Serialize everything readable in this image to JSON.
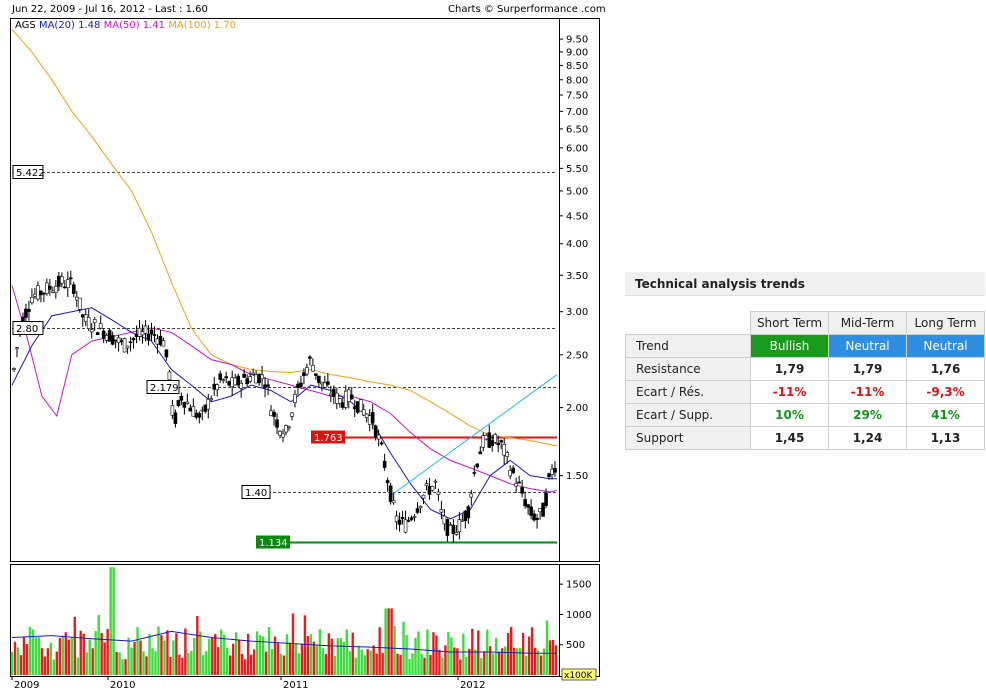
{
  "header": {
    "range_label": "Jun 22, 2009 - Jul 16, 2012 - Last : 1.60",
    "credit": "Charts © Surperformance .com"
  },
  "legend": {
    "ticker": "AGS",
    "ma20": "MA(20) 1.48",
    "ma50": "MA(50) 1.41",
    "ma100": "MA(100) 1.70"
  },
  "colors": {
    "ma20": "#1a1ab4",
    "ma50": "#c814c8",
    "ma100": "#f0a014",
    "trend": "#20b8e8",
    "resistance": "#e01010",
    "support": "#0a8a0a",
    "vol_up": "#3cdc3c",
    "vol_down": "#e81c1c",
    "bullish": "#1a9a1a",
    "neutral": "#2e8fe0"
  },
  "chart_data": {
    "type": "candlestick",
    "y_scale": "log",
    "y_ticks": [
      "9.50",
      "9.00",
      "8.50",
      "8.00",
      "7.50",
      "7.00",
      "6.50",
      "6.00",
      "5.50",
      "5.00",
      "4.50",
      "4.00",
      "3.50",
      "3.00",
      "2.50",
      "2.00",
      "1.50"
    ],
    "x_ticks": [
      "2009",
      "2010",
      "2011",
      "2012"
    ],
    "levels": [
      {
        "label": "5.422",
        "value": 5.422,
        "style": "dashed"
      },
      {
        "label": "2.80",
        "value": 2.8,
        "style": "dashed"
      },
      {
        "label": "2.179",
        "value": 2.179,
        "style": "dashed"
      },
      {
        "label": "1.40",
        "value": 1.4,
        "style": "dashed"
      },
      {
        "label": "1.763",
        "value": 1.763,
        "style": "resistance"
      },
      {
        "label": "1.134",
        "value": 1.134,
        "style": "support"
      }
    ],
    "price_path": [
      [
        0,
        2.2
      ],
      [
        8,
        2.8
      ],
      [
        20,
        3.2
      ],
      [
        35,
        3.3
      ],
      [
        50,
        3.4
      ],
      [
        62,
        3.35
      ],
      [
        72,
        2.9
      ],
      [
        88,
        2.8
      ],
      [
        100,
        2.7
      ],
      [
        112,
        2.6
      ],
      [
        125,
        2.7
      ],
      [
        140,
        2.75
      ],
      [
        152,
        2.65
      ],
      [
        158,
        2.3
      ],
      [
        162,
        1.85
      ],
      [
        170,
        2.1
      ],
      [
        180,
        2.0
      ],
      [
        190,
        1.9
      ],
      [
        200,
        2.1
      ],
      [
        210,
        2.25
      ],
      [
        222,
        2.2
      ],
      [
        232,
        2.25
      ],
      [
        245,
        2.3
      ],
      [
        255,
        2.25
      ],
      [
        260,
        2.0
      ],
      [
        268,
        1.85
      ],
      [
        275,
        1.8
      ],
      [
        285,
        2.1
      ],
      [
        295,
        2.35
      ],
      [
        300,
        2.45
      ],
      [
        308,
        2.25
      ],
      [
        318,
        2.15
      ],
      [
        330,
        2.05
      ],
      [
        340,
        2.1
      ],
      [
        350,
        2.0
      ],
      [
        362,
        1.9
      ],
      [
        370,
        1.7
      ],
      [
        378,
        1.45
      ],
      [
        385,
        1.25
      ],
      [
        395,
        1.22
      ],
      [
        405,
        1.3
      ],
      [
        415,
        1.4
      ],
      [
        425,
        1.45
      ],
      [
        432,
        1.25
      ],
      [
        440,
        1.18
      ],
      [
        450,
        1.22
      ],
      [
        458,
        1.3
      ],
      [
        465,
        1.55
      ],
      [
        472,
        1.72
      ],
      [
        482,
        1.75
      ],
      [
        492,
        1.7
      ],
      [
        500,
        1.55
      ],
      [
        510,
        1.42
      ],
      [
        520,
        1.28
      ],
      [
        528,
        1.25
      ],
      [
        534,
        1.3
      ],
      [
        540,
        1.5
      ],
      [
        547,
        1.6
      ]
    ],
    "ma20_path": [
      [
        0,
        2.2
      ],
      [
        20,
        2.6
      ],
      [
        40,
        2.95
      ],
      [
        60,
        3.0
      ],
      [
        80,
        3.05
      ],
      [
        100,
        2.9
      ],
      [
        120,
        2.75
      ],
      [
        140,
        2.65
      ],
      [
        160,
        2.35
      ],
      [
        180,
        2.2
      ],
      [
        200,
        2.05
      ],
      [
        220,
        2.1
      ],
      [
        240,
        2.2
      ],
      [
        260,
        2.15
      ],
      [
        280,
        2.05
      ],
      [
        300,
        2.2
      ],
      [
        320,
        2.15
      ],
      [
        340,
        2.05
      ],
      [
        360,
        1.9
      ],
      [
        380,
        1.65
      ],
      [
        400,
        1.45
      ],
      [
        420,
        1.3
      ],
      [
        440,
        1.25
      ],
      [
        460,
        1.3
      ],
      [
        480,
        1.5
      ],
      [
        500,
        1.6
      ],
      [
        520,
        1.5
      ],
      [
        540,
        1.48
      ],
      [
        547,
        1.48
      ]
    ],
    "ma50_path": [
      [
        0,
        3.35
      ],
      [
        15,
        2.7
      ],
      [
        30,
        2.1
      ],
      [
        45,
        1.93
      ],
      [
        60,
        2.5
      ],
      [
        80,
        2.65
      ],
      [
        100,
        2.7
      ],
      [
        120,
        2.75
      ],
      [
        140,
        2.8
      ],
      [
        160,
        2.75
      ],
      [
        180,
        2.6
      ],
      [
        200,
        2.45
      ],
      [
        220,
        2.4
      ],
      [
        240,
        2.3
      ],
      [
        260,
        2.25
      ],
      [
        280,
        2.2
      ],
      [
        300,
        2.15
      ],
      [
        320,
        2.1
      ],
      [
        340,
        2.1
      ],
      [
        360,
        2.05
      ],
      [
        380,
        1.95
      ],
      [
        400,
        1.8
      ],
      [
        420,
        1.68
      ],
      [
        440,
        1.6
      ],
      [
        460,
        1.55
      ],
      [
        480,
        1.5
      ],
      [
        500,
        1.45
      ],
      [
        520,
        1.42
      ],
      [
        540,
        1.4
      ],
      [
        547,
        1.41
      ]
    ],
    "ma100_path": [
      [
        0,
        9.9
      ],
      [
        20,
        9.0
      ],
      [
        40,
        8.0
      ],
      [
        60,
        7.0
      ],
      [
        80,
        6.3
      ],
      [
        100,
        5.6
      ],
      [
        120,
        5.0
      ],
      [
        140,
        4.2
      ],
      [
        160,
        3.4
      ],
      [
        180,
        2.8
      ],
      [
        200,
        2.5
      ],
      [
        220,
        2.4
      ],
      [
        240,
        2.35
      ],
      [
        260,
        2.33
      ],
      [
        280,
        2.32
      ],
      [
        300,
        2.35
      ],
      [
        320,
        2.3
      ],
      [
        340,
        2.27
      ],
      [
        360,
        2.23
      ],
      [
        380,
        2.2
      ],
      [
        400,
        2.15
      ],
      [
        420,
        2.05
      ],
      [
        440,
        1.95
      ],
      [
        460,
        1.85
      ],
      [
        480,
        1.78
      ],
      [
        500,
        1.76
      ],
      [
        520,
        1.74
      ],
      [
        547,
        1.7
      ]
    ],
    "trend_line": [
      [
        378,
        1.37
      ],
      [
        547,
        2.3
      ]
    ],
    "volume_ticks": [
      "1500",
      "1000",
      "500"
    ],
    "volume_unit": "x100K",
    "volume_max": 1800,
    "volume_ma_path": [
      [
        0,
        620
      ],
      [
        40,
        650
      ],
      [
        80,
        600
      ],
      [
        120,
        560
      ],
      [
        160,
        720
      ],
      [
        200,
        620
      ],
      [
        240,
        560
      ],
      [
        280,
        520
      ],
      [
        320,
        480
      ],
      [
        360,
        460
      ],
      [
        400,
        430
      ],
      [
        440,
        380
      ],
      [
        480,
        380
      ],
      [
        520,
        360
      ],
      [
        547,
        360
      ]
    ]
  },
  "table": {
    "title": "Technical analysis trends",
    "columns": [
      "Short Term",
      "Mid-Term",
      "Long Term"
    ],
    "rows": [
      {
        "label": "Trend",
        "values": [
          "Bullish",
          "Neutral",
          "Neutral"
        ]
      },
      {
        "label": "Resistance",
        "values": [
          "1,79",
          "1,79",
          "1,76"
        ]
      },
      {
        "label": "Ecart / Rés.",
        "values": [
          "-11%",
          "-11%",
          "-9,3%"
        ]
      },
      {
        "label": "Ecart / Supp.",
        "values": [
          "10%",
          "29%",
          "41%"
        ]
      },
      {
        "label": "Support",
        "values": [
          "1,45",
          "1,24",
          "1,13"
        ]
      }
    ]
  }
}
